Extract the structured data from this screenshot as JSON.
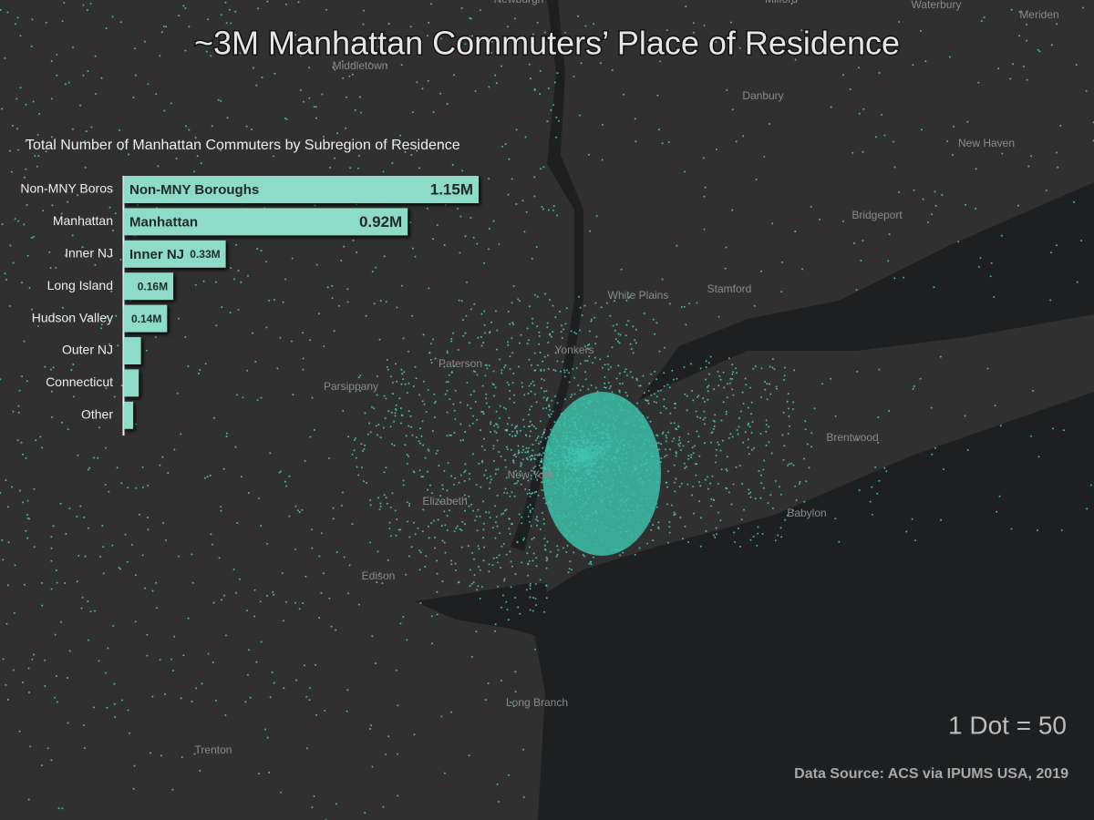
{
  "title": "~3M Manhattan Commuters’ Place of Residence",
  "places": [
    "Middletown",
    "Danbury",
    "Waterbury",
    "Meriden",
    "Milford",
    "Newburgh",
    "New Haven",
    "Bridgeport",
    "Stamford",
    "White Plains",
    "Yonkers",
    "Paterson",
    "Parsippany",
    "New York",
    "Elizabeth",
    "Edison",
    "Brentwood",
    "Babylon",
    "Long Branch",
    "Trenton"
  ],
  "legend": "1 Dot = 50",
  "source": "Data Source: ACS via IPUMS USA, 2019",
  "chart_data": {
    "type": "bar",
    "orientation": "horizontal",
    "title": "Total Number of Manhattan Commuters by Subregion of Residence",
    "categories": [
      "Non-MNY Boros",
      "Manhattan",
      "Inner NJ",
      "Long Island",
      "Hudson Valley",
      "Outer NJ",
      "Connecticut",
      "Other"
    ],
    "bar_names": [
      "Non-MNY Boroughs",
      "Manhattan",
      "Inner NJ",
      null,
      null,
      null,
      null,
      null
    ],
    "values": [
      1150000,
      920000,
      330000,
      160000,
      140000,
      55000,
      48000,
      30000
    ],
    "value_labels": [
      "1.15M",
      "0.92M",
      "0.33M",
      "0.16M",
      "0.14M",
      null,
      null,
      null
    ],
    "color": "#8edcc8"
  }
}
